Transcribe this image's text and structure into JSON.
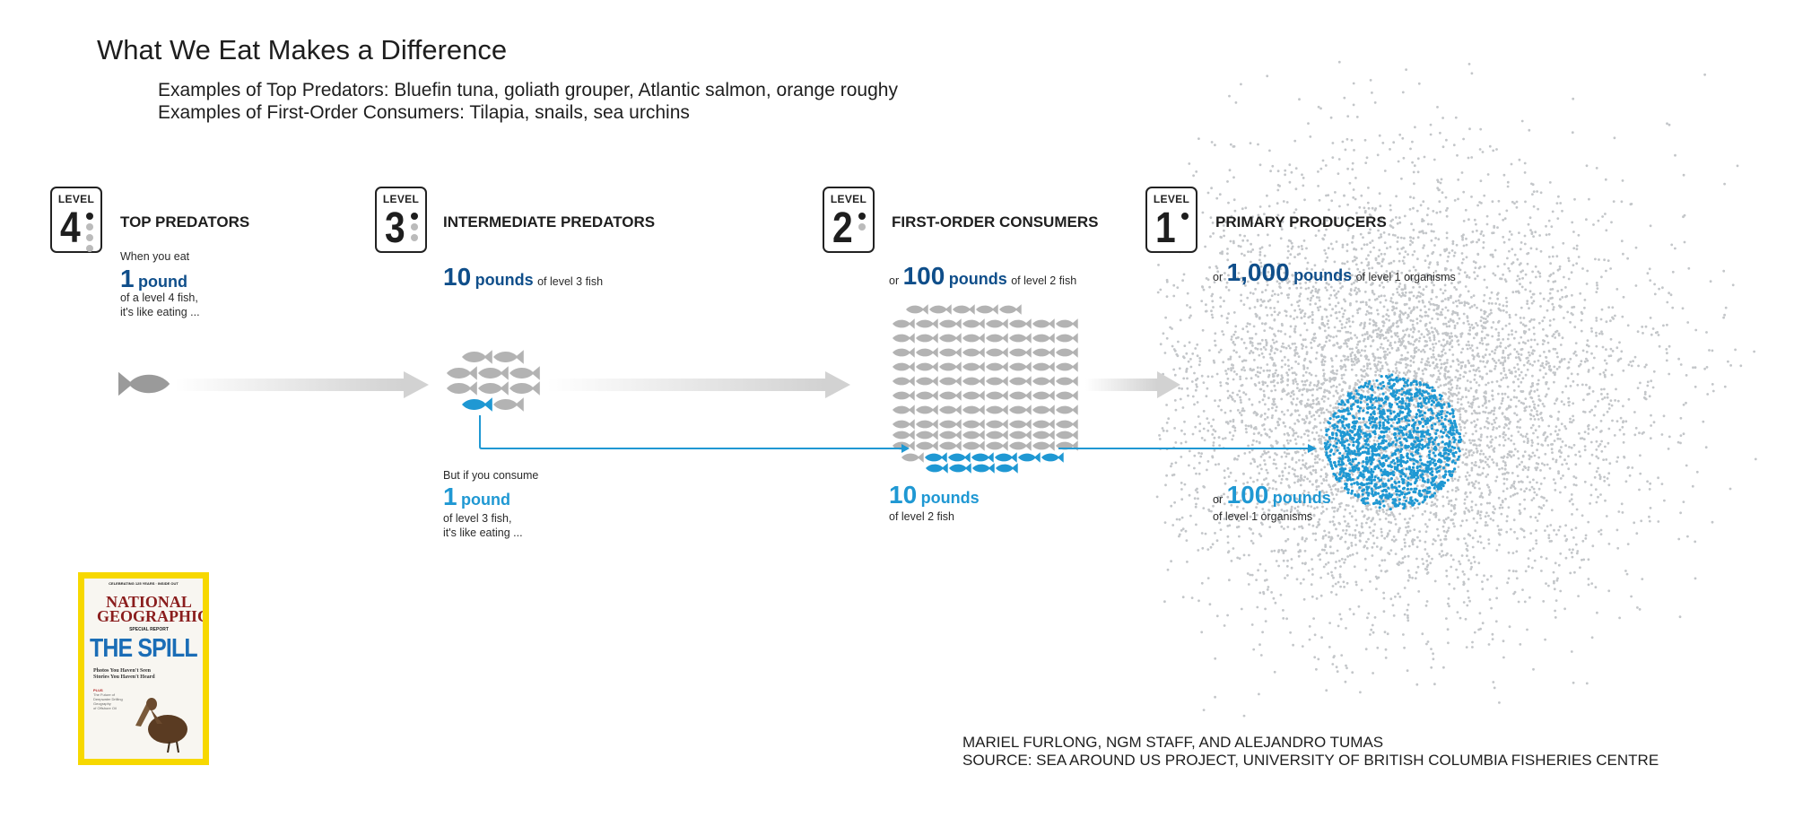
{
  "title": "What We Eat Makes a Difference",
  "examples": [
    "Examples of Top Predators: Bluefin tuna, goliath grouper, Atlantic salmon, orange roughy",
    "Examples of First-Order Consumers: Tilapia, snails, sea urchins"
  ],
  "level_word": "LEVEL",
  "levels": [
    {
      "number": "4",
      "title": "TOP PREDATORS",
      "filled_dots": 4
    },
    {
      "number": "3",
      "title": "INTERMEDIATE PREDATORS",
      "filled_dots": 3
    },
    {
      "number": "2",
      "title": "FIRST-ORDER CONSUMERS",
      "filled_dots": 2
    },
    {
      "number": "1",
      "title": "PRIMARY PRODUCERS",
      "filled_dots": 1
    }
  ],
  "level4_text": {
    "intro": "When you eat",
    "amount": "1",
    "unit": "pound",
    "line1": "of a level 4 fish,",
    "line2": "it's like eating ..."
  },
  "top_row": {
    "level3": {
      "prefix": "",
      "amount": "10",
      "unit": "pounds",
      "suffix": "of level 3 fish"
    },
    "level2": {
      "prefix": "or",
      "amount": "100",
      "unit": "pounds",
      "suffix": "of level 2 fish"
    },
    "level1": {
      "prefix": "or",
      "amount": "1,000",
      "unit": "pounds",
      "suffix": "of level 1 organisms"
    }
  },
  "bottom_row": {
    "level3": {
      "intro": "But if you consume",
      "amount": "1",
      "unit": "pound",
      "line1": "of level 3 fish,",
      "line2": "it's like eating ..."
    },
    "level2": {
      "amount": "10",
      "unit": "pounds",
      "line1": "of level 2 fish"
    },
    "level1": {
      "prefix": "or",
      "amount": "100",
      "unit": "pounds",
      "line1": "of level 1 organisms"
    }
  },
  "fish_counts": {
    "level4": 1,
    "level3_total": 10,
    "level3_highlight": 1,
    "level2_total": 100,
    "level2_highlight": 10
  },
  "dot_counts": {
    "level1_total": 1000,
    "level1_highlight": 100
  },
  "colors": {
    "dark_blue": "#0f4e8a",
    "bright_blue": "#1f98d3",
    "gray": "#b3b3b3",
    "arrow_gray": "#dcdcdc",
    "cover_yellow": "#f7d800"
  },
  "credits": [
    "MARIEL FURLONG, NGM STAFF, AND ALEJANDRO TUMAS",
    "SOURCE: SEA AROUND US PROJECT, UNIVERSITY OF BRITISH COLUMBIA FISHERIES CENTRE"
  ],
  "cover": {
    "strip": "CELEBRATING 125 YEARS · INSIDE OUT",
    "masthead_line1": "NATIONAL",
    "masthead_line2": "GEOGRAPHIC",
    "special_report": "SPECIAL REPORT",
    "headline": "THE SPILL",
    "subhead_line1": "Photos You Haven't Seen",
    "subhead_line2": "Stories You Haven't Heard",
    "aside_label": "PLUS",
    "aside_line1": "The Future of",
    "aside_line2": "Deepwater Drilling",
    "aside_line3": "Geography",
    "aside_line4": "of Offshore Oil",
    "icon": "pelican-icon"
  }
}
